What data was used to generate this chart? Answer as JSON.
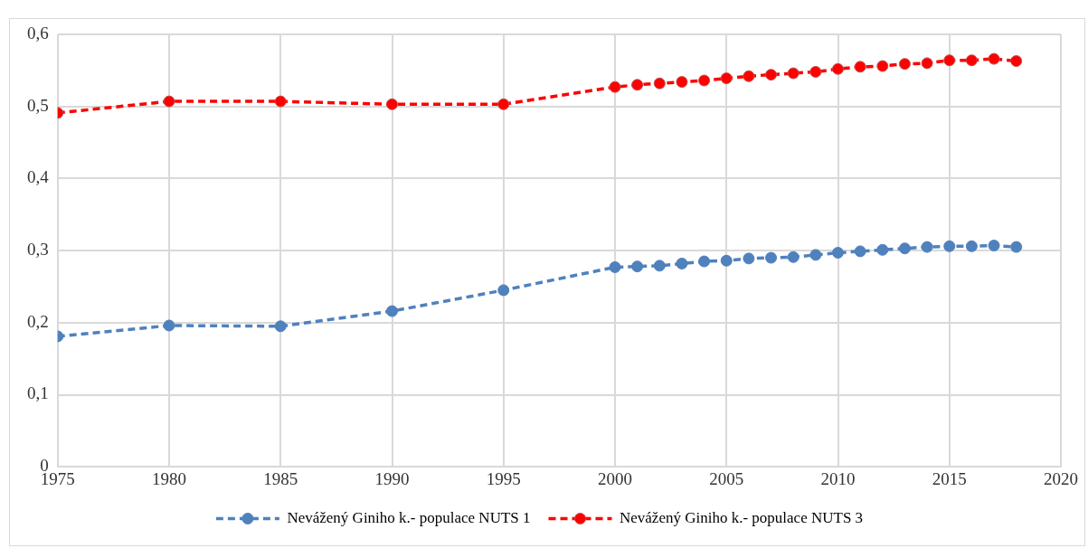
{
  "chart_data": {
    "type": "line",
    "x": [
      1975,
      1980,
      1985,
      1990,
      1995,
      2000,
      2001,
      2002,
      2003,
      2004,
      2005,
      2006,
      2007,
      2008,
      2009,
      2010,
      2011,
      2012,
      2013,
      2014,
      2015,
      2016,
      2017,
      2018
    ],
    "series": [
      {
        "name": "Nevážený Giniho k.- populace NUTS 1",
        "color": "#4f81bd",
        "values": [
          0.181,
          0.196,
          0.195,
          0.216,
          0.245,
          0.277,
          0.278,
          0.279,
          0.282,
          0.285,
          0.286,
          0.289,
          0.29,
          0.291,
          0.294,
          0.297,
          0.299,
          0.301,
          0.303,
          0.305,
          0.306,
          0.306,
          0.307,
          0.305
        ]
      },
      {
        "name": "Nevážený Giniho k.- populace NUTS 3",
        "color": "#ff0000",
        "values": [
          0.491,
          0.507,
          0.507,
          0.503,
          0.503,
          0.527,
          0.53,
          0.532,
          0.534,
          0.536,
          0.539,
          0.542,
          0.544,
          0.546,
          0.548,
          0.552,
          0.555,
          0.556,
          0.559,
          0.56,
          0.564,
          0.564,
          0.566,
          0.563
        ]
      }
    ],
    "xlim": [
      1975,
      2020
    ],
    "xticks": [
      1975,
      1980,
      1985,
      1990,
      1995,
      2000,
      2005,
      2010,
      2015,
      2020
    ],
    "ylim": [
      0,
      0.6
    ],
    "yticks": [
      0,
      {
        "value": 0.1,
        "label": "0,1"
      },
      {
        "value": 0.2,
        "label": "0,2"
      },
      {
        "value": 0.3,
        "label": "0,3"
      },
      {
        "value": 0.4,
        "label": "0,4"
      },
      {
        "value": 0.5,
        "label": "0,5"
      },
      {
        "value": 0.6,
        "label": "0,6"
      }
    ],
    "grid": true,
    "legend": "bottom",
    "marker": "circle",
    "line_style": "dashed"
  }
}
